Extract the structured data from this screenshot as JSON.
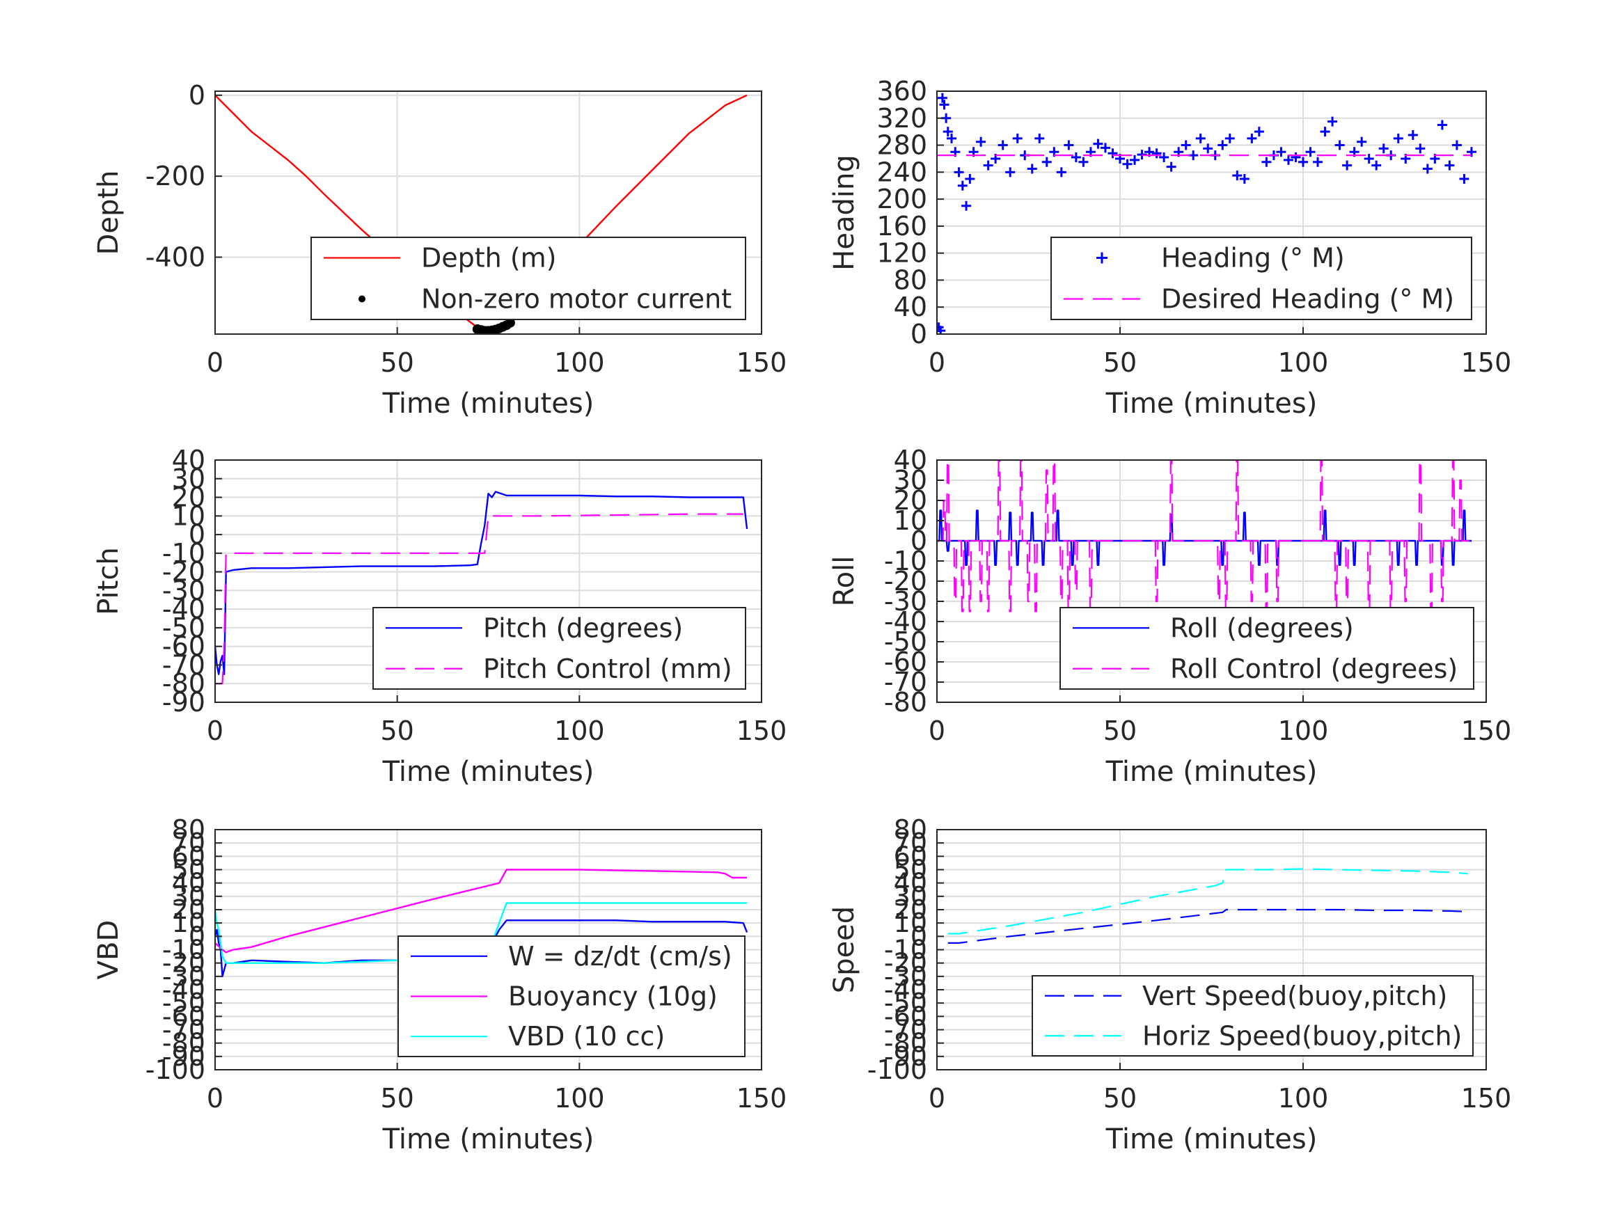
{
  "figure": {
    "background": "#ffffff",
    "grid_color": "#dcdcdc",
    "axis_color": "#262626"
  },
  "chart_data": [
    {
      "type": "line",
      "xlabel": "Time (minutes)",
      "ylabel": "Depth",
      "xlim": [
        0,
        150
      ],
      "ylim": [
        -590,
        10
      ],
      "xticks": [
        0,
        50,
        100,
        150
      ],
      "yticks": [
        0,
        -200,
        -400
      ],
      "grid": true,
      "legend_position": "lower-right",
      "series": [
        {
          "name": "Depth (m)",
          "color": "#ff0000",
          "style": "solid",
          "marker": "none",
          "x": [
            0,
            5,
            10,
            20,
            25,
            30,
            40,
            50,
            60,
            65,
            70,
            73,
            75,
            78,
            80,
            85,
            90,
            100,
            110,
            120,
            130,
            140,
            146
          ],
          "y": [
            0,
            -45,
            -90,
            -160,
            -200,
            -245,
            -330,
            -410,
            -490,
            -525,
            -560,
            -580,
            -582,
            -580,
            -570,
            -525,
            -470,
            -370,
            -275,
            -185,
            -95,
            -25,
            0
          ]
        },
        {
          "name": "Non-zero motor current",
          "color": "#000000",
          "style": "none",
          "marker": "dot",
          "x": [
            72,
            73,
            74,
            75,
            76,
            77,
            78,
            79,
            80,
            81
          ],
          "y": [
            -578,
            -580,
            -582,
            -582,
            -581,
            -579,
            -576,
            -572,
            -568,
            -562
          ]
        }
      ]
    },
    {
      "type": "line",
      "xlabel": "Time (minutes)",
      "ylabel": "Heading",
      "xlim": [
        0,
        150
      ],
      "ylim": [
        0,
        360
      ],
      "xticks": [
        0,
        50,
        100,
        150
      ],
      "yticks": [
        0,
        40,
        80,
        120,
        160,
        200,
        240,
        280,
        320,
        360
      ],
      "grid": true,
      "legend_position": "lower-right",
      "series": [
        {
          "name": "Heading (° M)",
          "color": "#0000ff",
          "style": "none",
          "marker": "plus",
          "x": [
            0.5,
            1,
            1.5,
            2,
            2.5,
            3,
            4,
            5,
            6,
            7,
            8,
            9,
            10,
            12,
            14,
            16,
            18,
            20,
            22,
            24,
            26,
            28,
            30,
            32,
            34,
            36,
            38,
            40,
            42,
            44,
            46,
            48,
            50,
            52,
            54,
            56,
            58,
            60,
            62,
            64,
            66,
            68,
            70,
            72,
            74,
            76,
            78,
            80,
            82,
            84,
            86,
            88,
            90,
            92,
            94,
            96,
            98,
            100,
            102,
            104,
            106,
            108,
            110,
            112,
            114,
            116,
            118,
            120,
            122,
            124,
            126,
            128,
            130,
            132,
            134,
            136,
            138,
            140,
            142,
            144,
            146
          ],
          "y": [
            10,
            5,
            350,
            340,
            320,
            300,
            290,
            270,
            240,
            220,
            190,
            230,
            270,
            285,
            250,
            260,
            280,
            240,
            290,
            265,
            245,
            290,
            255,
            270,
            240,
            280,
            262,
            255,
            270,
            282,
            276,
            268,
            260,
            252,
            258,
            266,
            270,
            268,
            262,
            248,
            270,
            280,
            265,
            290,
            275,
            265,
            280,
            290,
            235,
            230,
            290,
            300,
            255,
            265,
            270,
            258,
            262,
            255,
            270,
            255,
            300,
            315,
            280,
            250,
            270,
            285,
            260,
            250,
            275,
            265,
            290,
            260,
            295,
            275,
            245,
            260,
            310,
            250,
            280,
            230,
            270
          ]
        },
        {
          "name": "Desired Heading (° M)",
          "color": "#ff00ff",
          "style": "dashed",
          "marker": "none",
          "x": [
            0,
            146
          ],
          "y": [
            265,
            265
          ]
        }
      ]
    },
    {
      "type": "line",
      "xlabel": "Time (minutes)",
      "ylabel": "Pitch",
      "xlim": [
        0,
        150
      ],
      "ylim": [
        -90,
        40
      ],
      "xticks": [
        0,
        50,
        100,
        150
      ],
      "yticks": [
        -90,
        -80,
        -70,
        -60,
        -50,
        -40,
        -30,
        -20,
        -10,
        0,
        10,
        20,
        30,
        40
      ],
      "grid": true,
      "legend_position": "lower-right",
      "series": [
        {
          "name": "Pitch (degrees)",
          "color": "#0000ff",
          "style": "solid",
          "marker": "none",
          "x": [
            0,
            0.5,
            1,
            1.5,
            2,
            2.5,
            3,
            5,
            10,
            20,
            30,
            40,
            50,
            60,
            70,
            72,
            73,
            74,
            75,
            76,
            77,
            80,
            90,
            100,
            110,
            120,
            130,
            140,
            145,
            146
          ],
          "y": [
            -60,
            -70,
            -75,
            -68,
            -65,
            -75,
            -20,
            -19,
            -18,
            -18,
            -17.5,
            -17,
            -17,
            -17,
            -16.5,
            -16,
            -5,
            5,
            22,
            20,
            23,
            21,
            21,
            21,
            20.5,
            20.5,
            20,
            20,
            20,
            3
          ]
        },
        {
          "name": "Pitch Control (mm)",
          "color": "#ff00ff",
          "style": "dashed",
          "marker": "none",
          "x": [
            0,
            1,
            2,
            2.5,
            3,
            10,
            40,
            70,
            72,
            74,
            75,
            76,
            90,
            110,
            130,
            145
          ],
          "y": [
            -80,
            -80,
            -80,
            -60,
            -10,
            -10,
            -10,
            -10,
            -10,
            -10,
            10,
            10,
            10,
            10.5,
            11,
            11
          ]
        }
      ]
    },
    {
      "type": "line",
      "xlabel": "Time (minutes)",
      "ylabel": "Roll",
      "xlim": [
        0,
        150
      ],
      "ylim": [
        -80,
        40
      ],
      "xticks": [
        0,
        50,
        100,
        150
      ],
      "yticks": [
        -80,
        -70,
        -60,
        -50,
        -40,
        -30,
        -20,
        -10,
        0,
        10,
        20,
        30,
        40
      ],
      "grid": true,
      "legend_position": "lower-right",
      "series": [
        {
          "name": "Roll (degrees)",
          "color": "#0000ff",
          "style": "solid",
          "marker": "none",
          "spikes": [
            [
              1,
              15
            ],
            [
              3,
              -5
            ],
            [
              8,
              -12
            ],
            [
              11,
              15
            ],
            [
              16,
              -12
            ],
            [
              20,
              14
            ],
            [
              22,
              -12
            ],
            [
              26,
              14
            ],
            [
              29,
              -12
            ],
            [
              33,
              15
            ],
            [
              37,
              -12
            ],
            [
              40,
              0
            ],
            [
              44,
              -12
            ],
            [
              48,
              0
            ],
            [
              58,
              0
            ],
            [
              62,
              -12
            ],
            [
              64,
              13
            ],
            [
              70,
              0
            ],
            [
              78,
              -12
            ],
            [
              84,
              14
            ],
            [
              88,
              -12
            ],
            [
              93,
              -12
            ],
            [
              102,
              0
            ],
            [
              106,
              15
            ],
            [
              110,
              -12
            ],
            [
              114,
              -12
            ],
            [
              120,
              0
            ],
            [
              126,
              -12
            ],
            [
              131,
              -12
            ],
            [
              138,
              -12
            ],
            [
              141,
              -12
            ],
            [
              144,
              15
            ]
          ],
          "x": [
            0,
            146
          ],
          "y": [
            0,
            0
          ]
        },
        {
          "name": "Roll Control (degrees)",
          "color": "#ff00ff",
          "style": "dashed",
          "marker": "none",
          "spikes": [
            [
              2,
              20
            ],
            [
              3,
              40
            ],
            [
              5,
              -30
            ],
            [
              7,
              -35
            ],
            [
              9,
              -35
            ],
            [
              12,
              -30
            ],
            [
              14,
              -35
            ],
            [
              17,
              40
            ],
            [
              20,
              -35
            ],
            [
              23,
              40
            ],
            [
              25,
              -30
            ],
            [
              27,
              -35
            ],
            [
              30,
              35
            ],
            [
              32,
              40
            ],
            [
              34,
              -30
            ],
            [
              36,
              -35
            ],
            [
              38,
              -25
            ],
            [
              42,
              -35
            ],
            [
              60,
              -30
            ],
            [
              64,
              40
            ],
            [
              77,
              -30
            ],
            [
              79,
              -35
            ],
            [
              82,
              40
            ],
            [
              86,
              -30
            ],
            [
              90,
              -35
            ],
            [
              93,
              -30
            ],
            [
              105,
              40
            ],
            [
              109,
              -35
            ],
            [
              112,
              -30
            ],
            [
              118,
              -35
            ],
            [
              124,
              -35
            ],
            [
              128,
              -30
            ],
            [
              132,
              40
            ],
            [
              135,
              -35
            ],
            [
              138,
              -30
            ],
            [
              141,
              40
            ],
            [
              143,
              30
            ]
          ],
          "x": [
            0,
            146
          ],
          "y": [
            0,
            0
          ]
        }
      ]
    },
    {
      "type": "line",
      "xlabel": "Time (minutes)",
      "ylabel": "VBD",
      "xlim": [
        0,
        150
      ],
      "ylim": [
        -100,
        80
      ],
      "xticks": [
        0,
        50,
        100,
        150
      ],
      "yticks": [
        -100,
        -90,
        -80,
        -70,
        -60,
        -50,
        -40,
        -30,
        -20,
        -10,
        0,
        10,
        20,
        30,
        40,
        50,
        60,
        70,
        80
      ],
      "grid": true,
      "legend_position": "lower-right",
      "series": [
        {
          "name": "W = dz/dt (cm/s)",
          "color": "#0000ff",
          "style": "solid",
          "marker": "none",
          "x": [
            0,
            0.5,
            1,
            1.5,
            2,
            3,
            5,
            10,
            20,
            30,
            40,
            50,
            60,
            70,
            72,
            74,
            76,
            78,
            80,
            90,
            100,
            110,
            120,
            130,
            140,
            145,
            146
          ],
          "y": [
            0,
            5,
            -5,
            -10,
            -30,
            -20,
            -20,
            -18,
            -19,
            -20,
            -18,
            -18,
            -17,
            -17,
            -16,
            -15,
            -5,
            5,
            12,
            12,
            12,
            12,
            11,
            11,
            11,
            10,
            3
          ]
        },
        {
          "name": "Buoyancy (10g)",
          "color": "#ff00ff",
          "style": "solid",
          "marker": "none",
          "x": [
            0,
            2,
            3,
            5,
            10,
            20,
            40,
            60,
            78,
            80,
            90,
            100,
            110,
            120,
            130,
            138,
            140,
            142,
            146
          ],
          "y": [
            -5,
            -10,
            -12,
            -10,
            -8,
            0,
            14,
            28,
            40,
            50,
            50,
            50,
            49.5,
            49,
            48.5,
            48,
            47,
            44,
            44
          ]
        },
        {
          "name": "VBD (10 cc)",
          "color": "#00ffff",
          "style": "solid",
          "marker": "none",
          "x": [
            0,
            0.5,
            1,
            2,
            3,
            5,
            10,
            20,
            30,
            40,
            50,
            60,
            70,
            72,
            74,
            76,
            78,
            80,
            90,
            100,
            110,
            120,
            130,
            140,
            146
          ],
          "y": [
            20,
            10,
            5,
            -15,
            -20,
            -20,
            -20,
            -20,
            -20,
            -19,
            -18,
            -18,
            -17,
            -16,
            -12,
            -5,
            10,
            25,
            25,
            25,
            25,
            25,
            25,
            25,
            25
          ]
        }
      ]
    },
    {
      "type": "line",
      "xlabel": "Time (minutes)",
      "ylabel": "Speed",
      "xlim": [
        0,
        150
      ],
      "ylim": [
        -100,
        80
      ],
      "xticks": [
        0,
        50,
        100,
        150
      ],
      "yticks": [
        -100,
        -90,
        -80,
        -70,
        -60,
        -50,
        -40,
        -30,
        -20,
        -10,
        0,
        10,
        20,
        30,
        40,
        50,
        60,
        70,
        80
      ],
      "grid": true,
      "legend_position": "lower-right",
      "series": [
        {
          "name": "Vert Speed(buoy,pitch)",
          "color": "#0000ff",
          "style": "dashed",
          "marker": "none",
          "x": [
            3,
            6,
            20,
            40,
            60,
            78,
            79,
            90,
            100,
            110,
            120,
            130,
            140,
            145
          ],
          "y": [
            -5,
            -5,
            0,
            6,
            12,
            18,
            20,
            20,
            20,
            20,
            19.5,
            19.5,
            19,
            18.5
          ]
        },
        {
          "name": "Horiz Speed(buoy,pitch)",
          "color": "#00ffff",
          "style": "dashed",
          "marker": "none",
          "x": [
            3,
            6,
            20,
            40,
            60,
            76,
            78,
            79,
            90,
            100,
            110,
            120,
            130,
            140,
            145
          ],
          "y": [
            2,
            2,
            8,
            18,
            30,
            38,
            40,
            50,
            50,
            50.5,
            50,
            49.5,
            49,
            48,
            47
          ]
        }
      ]
    }
  ]
}
